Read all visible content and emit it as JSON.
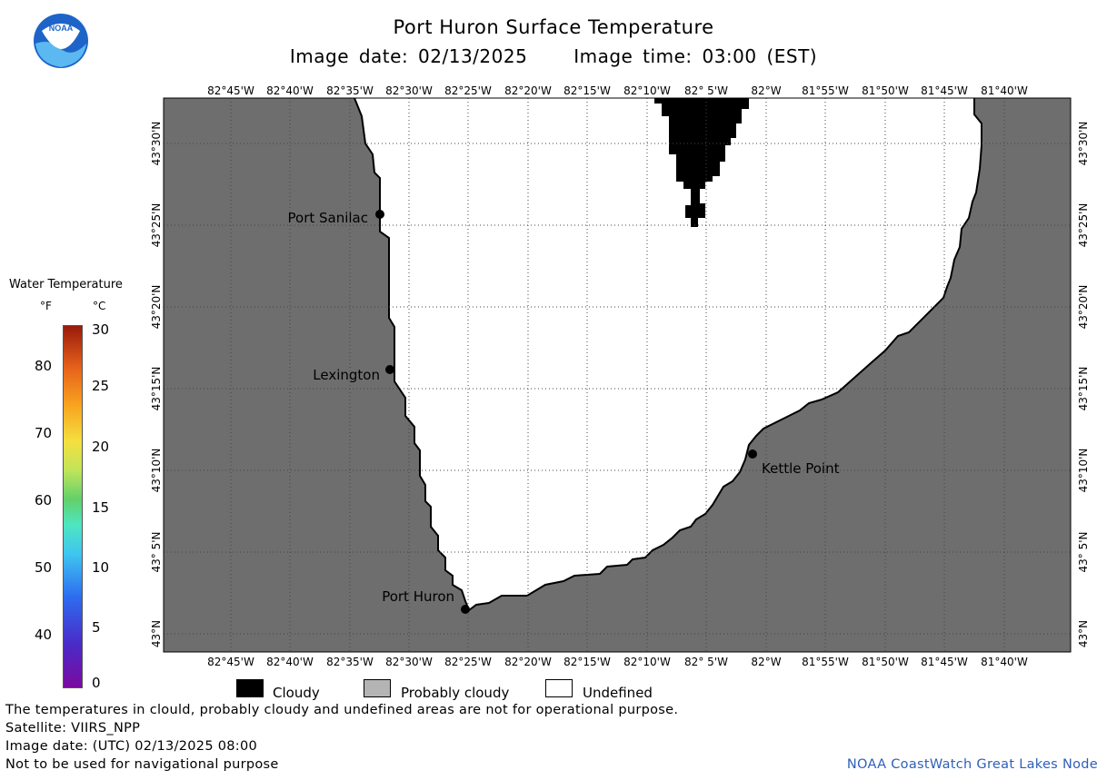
{
  "header": {
    "title": "Port Huron Surface Temperature",
    "image_date": "Image date: 02/13/2025",
    "image_time": "Image time: 03:00 (EST)",
    "logo_text": "NOAA"
  },
  "map": {
    "lon_labels": [
      "82°45'W",
      "82°40'W",
      "82°35'W",
      "82°30'W",
      "82°25'W",
      "82°20'W",
      "82°15'W",
      "82°10'W",
      "82° 5'W",
      "82°W",
      "81°55'W",
      "81°50'W",
      "81°45'W",
      "81°40'W"
    ],
    "lat_labels": [
      "43°30'N",
      "43°25'N",
      "43°20'N",
      "43°15'N",
      "43°10'N",
      "43° 5'N",
      "43°N"
    ],
    "cities": [
      {
        "name": "Port Sanilac"
      },
      {
        "name": "Lexington"
      },
      {
        "name": "Kettle Point"
      },
      {
        "name": "Port Huron"
      }
    ],
    "colors": {
      "land": "#6e6e6e",
      "water_undefined": "#ffffff",
      "cloudy": "#000000",
      "probably_cloudy": "#b4b4b4"
    }
  },
  "legend": {
    "title": "Water Temperature",
    "unit_f": "°F",
    "unit_c": "°C",
    "f_ticks": [
      "80",
      "70",
      "60",
      "50",
      "40"
    ],
    "c_ticks": [
      "30",
      "25",
      "20",
      "15",
      "10",
      "5",
      "0"
    ]
  },
  "key": {
    "cloudy": "Cloudy",
    "probably_cloudy": "Probably cloudy",
    "undefined": "Undefined"
  },
  "footer": {
    "disclaimer": "The temperatures in clould, probably cloudy and undefined areas are not for operational purpose.",
    "satellite": "Satellite: VIIRS_NPP",
    "utc_date": "Image date: (UTC) 02/13/2025  08:00",
    "nav_warning": "Not to be used for navigational purpose",
    "credit": "NOAA CoastWatch Great Lakes Node"
  }
}
